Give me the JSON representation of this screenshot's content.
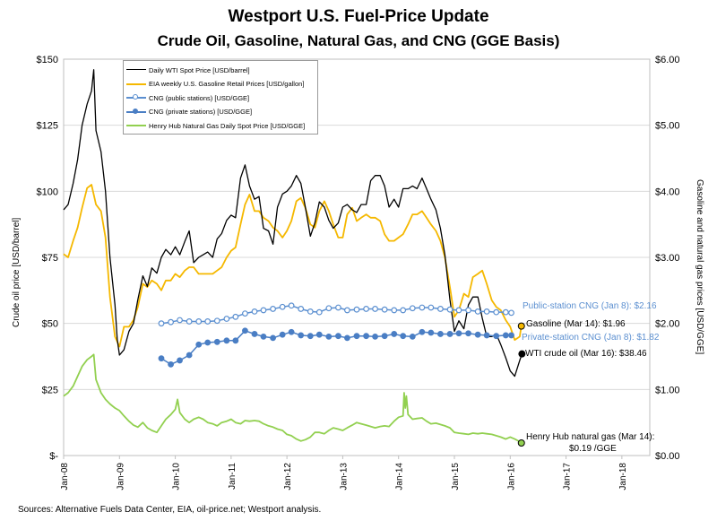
{
  "chart_data": {
    "type": "line",
    "title": "Westport U.S. Fuel-Price Update",
    "subtitle": "Crude Oil, Gasoline, Natural Gas, and CNG (GGE Basis)",
    "ylabel": "Crude oil price [USD/barrel]",
    "y2label": "Gasoline and natural gas prices [USD/GGE]",
    "ylim": [
      0,
      150
    ],
    "y2lim": [
      0,
      6
    ],
    "xlim": [
      2008.0,
      2018.5
    ],
    "y_ticks": [
      0,
      25,
      50,
      75,
      100,
      125,
      150
    ],
    "y_tick_labels": [
      "$-",
      "$25",
      "$50",
      "$75",
      "$100",
      "$125",
      "$150"
    ],
    "y2_ticks": [
      0,
      1,
      2,
      3,
      4,
      5,
      6
    ],
    "y2_tick_labels": [
      "$0.00",
      "$1.00",
      "$2.00",
      "$3.00",
      "$4.00",
      "$5.00",
      "$6.00"
    ],
    "x_ticks": [
      2008,
      2009,
      2010,
      2011,
      2012,
      2013,
      2014,
      2015,
      2016,
      2017,
      2018
    ],
    "x_tick_labels": [
      "Jan-08",
      "Jan-09",
      "Jan-10",
      "Jan-11",
      "Jan-12",
      "Jan-13",
      "Jan-14",
      "Jan-15",
      "Jan-16",
      "Jan-17",
      "Jan-18"
    ],
    "legend_position": "top-left",
    "series": [
      {
        "name": "Daily WTI Spot Price [USD/barrel]",
        "axis": "left",
        "color": "#000000",
        "style": "line",
        "x": [
          2008.0,
          2008.08,
          2008.17,
          2008.25,
          2008.33,
          2008.42,
          2008.5,
          2008.54,
          2008.58,
          2008.67,
          2008.75,
          2008.83,
          2008.92,
          2008.96,
          2009.0,
          2009.08,
          2009.17,
          2009.25,
          2009.33,
          2009.42,
          2009.5,
          2009.58,
          2009.67,
          2009.75,
          2009.83,
          2009.92,
          2010.0,
          2010.08,
          2010.17,
          2010.25,
          2010.33,
          2010.42,
          2010.5,
          2010.58,
          2010.67,
          2010.75,
          2010.83,
          2010.92,
          2011.0,
          2011.08,
          2011.17,
          2011.25,
          2011.33,
          2011.42,
          2011.5,
          2011.58,
          2011.67,
          2011.75,
          2011.83,
          2011.92,
          2012.0,
          2012.08,
          2012.17,
          2012.25,
          2012.33,
          2012.42,
          2012.5,
          2012.58,
          2012.67,
          2012.75,
          2012.83,
          2012.92,
          2013.0,
          2013.08,
          2013.17,
          2013.25,
          2013.33,
          2013.42,
          2013.5,
          2013.58,
          2013.67,
          2013.75,
          2013.83,
          2013.92,
          2014.0,
          2014.08,
          2014.17,
          2014.25,
          2014.33,
          2014.42,
          2014.5,
          2014.58,
          2014.67,
          2014.75,
          2014.83,
          2014.92,
          2015.0,
          2015.08,
          2015.17,
          2015.25,
          2015.33,
          2015.42,
          2015.5,
          2015.58,
          2015.67,
          2015.75,
          2015.83,
          2015.92,
          2016.0,
          2016.08,
          2016.17,
          2016.21
        ],
        "values": [
          93,
          95,
          103,
          112,
          125,
          133,
          138,
          146,
          123,
          115,
          100,
          75,
          57,
          44,
          38,
          40,
          47,
          50,
          59,
          68,
          64,
          71,
          69,
          75,
          78,
          76,
          79,
          76,
          81,
          85,
          73,
          75,
          76,
          77,
          75,
          82,
          84,
          89,
          91,
          90,
          105,
          110,
          102,
          97,
          98,
          86,
          85,
          80,
          94,
          99,
          100,
          102,
          106,
          103,
          94,
          83,
          88,
          96,
          94,
          89,
          86,
          88,
          94,
          95,
          93,
          92,
          95,
          95,
          104,
          106,
          106,
          102,
          94,
          97,
          94,
          101,
          101,
          102,
          101,
          105,
          101,
          97,
          93,
          86,
          76,
          59,
          47,
          51,
          48,
          57,
          60,
          60,
          52,
          45,
          45,
          46,
          42,
          37,
          32,
          30,
          36,
          38.46
        ]
      },
      {
        "name": "EIA weekly U.S. Gasoline Retail Prices [USD/gallon]",
        "axis": "right",
        "color": "#f5b800",
        "style": "line",
        "x": [
          2008.0,
          2008.08,
          2008.17,
          2008.25,
          2008.33,
          2008.42,
          2008.5,
          2008.58,
          2008.67,
          2008.75,
          2008.83,
          2008.92,
          2009.0,
          2009.08,
          2009.17,
          2009.25,
          2009.33,
          2009.42,
          2009.5,
          2009.58,
          2009.67,
          2009.75,
          2009.83,
          2009.92,
          2010.0,
          2010.08,
          2010.17,
          2010.25,
          2010.33,
          2010.42,
          2010.5,
          2010.58,
          2010.67,
          2010.75,
          2010.83,
          2010.92,
          2011.0,
          2011.08,
          2011.17,
          2011.25,
          2011.33,
          2011.42,
          2011.5,
          2011.58,
          2011.67,
          2011.75,
          2011.83,
          2011.92,
          2012.0,
          2012.08,
          2012.17,
          2012.25,
          2012.33,
          2012.42,
          2012.5,
          2012.58,
          2012.67,
          2012.75,
          2012.83,
          2012.92,
          2013.0,
          2013.08,
          2013.17,
          2013.25,
          2013.33,
          2013.42,
          2013.5,
          2013.58,
          2013.67,
          2013.75,
          2013.83,
          2013.92,
          2014.0,
          2014.08,
          2014.17,
          2014.25,
          2014.33,
          2014.42,
          2014.5,
          2014.58,
          2014.67,
          2014.75,
          2014.83,
          2014.92,
          2015.0,
          2015.08,
          2015.17,
          2015.25,
          2015.33,
          2015.42,
          2015.5,
          2015.58,
          2015.67,
          2015.75,
          2015.83,
          2015.92,
          2016.0,
          2016.08,
          2016.17,
          2016.2
        ],
        "values": [
          3.05,
          3.0,
          3.25,
          3.45,
          3.75,
          4.05,
          4.1,
          3.8,
          3.7,
          3.3,
          2.4,
          1.8,
          1.65,
          1.95,
          1.95,
          2.05,
          2.25,
          2.6,
          2.55,
          2.65,
          2.6,
          2.5,
          2.65,
          2.65,
          2.75,
          2.7,
          2.8,
          2.85,
          2.85,
          2.75,
          2.75,
          2.75,
          2.75,
          2.8,
          2.85,
          3.0,
          3.1,
          3.15,
          3.5,
          3.8,
          3.95,
          3.7,
          3.7,
          3.6,
          3.55,
          3.45,
          3.4,
          3.3,
          3.4,
          3.55,
          3.85,
          3.9,
          3.75,
          3.5,
          3.45,
          3.7,
          3.85,
          3.7,
          3.5,
          3.3,
          3.3,
          3.65,
          3.75,
          3.55,
          3.6,
          3.65,
          3.6,
          3.6,
          3.55,
          3.35,
          3.25,
          3.25,
          3.3,
          3.35,
          3.5,
          3.65,
          3.65,
          3.7,
          3.6,
          3.5,
          3.4,
          3.25,
          3.0,
          2.55,
          2.1,
          2.2,
          2.45,
          2.4,
          2.7,
          2.75,
          2.8,
          2.6,
          2.35,
          2.25,
          2.2,
          2.05,
          1.95,
          1.75,
          1.8,
          1.96
        ]
      },
      {
        "name": "CNG (public stations) [USD/GGE]",
        "axis": "right",
        "color": "#5b8fd0",
        "style": "open-markers",
        "x": [
          2009.75,
          2009.92,
          2010.08,
          2010.25,
          2010.42,
          2010.58,
          2010.75,
          2010.92,
          2011.08,
          2011.25,
          2011.42,
          2011.58,
          2011.75,
          2011.92,
          2012.08,
          2012.25,
          2012.42,
          2012.58,
          2012.75,
          2012.92,
          2013.08,
          2013.25,
          2013.42,
          2013.58,
          2013.75,
          2013.92,
          2014.08,
          2014.25,
          2014.42,
          2014.58,
          2014.75,
          2014.92,
          2015.08,
          2015.25,
          2015.42,
          2015.58,
          2015.75,
          2015.92,
          2016.02
        ],
        "values": [
          2.0,
          2.02,
          2.05,
          2.03,
          2.03,
          2.03,
          2.04,
          2.07,
          2.1,
          2.15,
          2.18,
          2.2,
          2.22,
          2.25,
          2.27,
          2.22,
          2.18,
          2.17,
          2.23,
          2.24,
          2.2,
          2.21,
          2.22,
          2.22,
          2.21,
          2.2,
          2.2,
          2.23,
          2.24,
          2.24,
          2.22,
          2.21,
          2.2,
          2.2,
          2.18,
          2.18,
          2.17,
          2.17,
          2.16
        ]
      },
      {
        "name": "CNG (private stations) [USD/GGE]",
        "axis": "right",
        "color": "#4a7ec4",
        "style": "filled-markers",
        "x": [
          2009.75,
          2009.92,
          2010.08,
          2010.25,
          2010.42,
          2010.58,
          2010.75,
          2010.92,
          2011.08,
          2011.25,
          2011.42,
          2011.58,
          2011.75,
          2011.92,
          2012.08,
          2012.25,
          2012.42,
          2012.58,
          2012.75,
          2012.92,
          2013.08,
          2013.25,
          2013.42,
          2013.58,
          2013.75,
          2013.92,
          2014.08,
          2014.25,
          2014.42,
          2014.58,
          2014.75,
          2014.92,
          2015.08,
          2015.25,
          2015.42,
          2015.58,
          2015.75,
          2015.92,
          2016.02
        ],
        "values": [
          1.47,
          1.38,
          1.44,
          1.52,
          1.68,
          1.71,
          1.72,
          1.74,
          1.74,
          1.89,
          1.84,
          1.8,
          1.78,
          1.83,
          1.87,
          1.82,
          1.81,
          1.83,
          1.8,
          1.81,
          1.78,
          1.81,
          1.81,
          1.8,
          1.81,
          1.84,
          1.81,
          1.8,
          1.87,
          1.86,
          1.84,
          1.84,
          1.85,
          1.85,
          1.83,
          1.82,
          1.81,
          1.82,
          1.82
        ]
      },
      {
        "name": "Henry Hub Natural Gas Daily Spot Price [USD/GGE]",
        "axis": "right",
        "color": "#92d050",
        "style": "line",
        "x": [
          2008.0,
          2008.08,
          2008.17,
          2008.25,
          2008.33,
          2008.42,
          2008.5,
          2008.54,
          2008.58,
          2008.67,
          2008.75,
          2008.83,
          2008.92,
          2009.0,
          2009.08,
          2009.17,
          2009.25,
          2009.33,
          2009.42,
          2009.5,
          2009.58,
          2009.67,
          2009.75,
          2009.83,
          2009.92,
          2010.0,
          2010.04,
          2010.08,
          2010.17,
          2010.25,
          2010.33,
          2010.42,
          2010.5,
          2010.58,
          2010.67,
          2010.75,
          2010.83,
          2010.92,
          2011.0,
          2011.08,
          2011.17,
          2011.25,
          2011.33,
          2011.42,
          2011.5,
          2011.58,
          2011.67,
          2011.75,
          2011.83,
          2011.92,
          2012.0,
          2012.08,
          2012.17,
          2012.25,
          2012.33,
          2012.42,
          2012.5,
          2012.58,
          2012.67,
          2012.75,
          2012.83,
          2012.92,
          2013.0,
          2013.08,
          2013.17,
          2013.25,
          2013.33,
          2013.42,
          2013.5,
          2013.58,
          2013.67,
          2013.75,
          2013.83,
          2013.92,
          2014.0,
          2014.08,
          2014.1,
          2014.12,
          2014.14,
          2014.17,
          2014.25,
          2014.33,
          2014.42,
          2014.5,
          2014.58,
          2014.67,
          2014.75,
          2014.83,
          2014.92,
          2015.0,
          2015.08,
          2015.17,
          2015.25,
          2015.33,
          2015.42,
          2015.5,
          2015.58,
          2015.67,
          2015.75,
          2015.83,
          2015.92,
          2016.0,
          2016.08,
          2016.17,
          2016.2
        ],
        "values": [
          0.9,
          0.95,
          1.05,
          1.2,
          1.35,
          1.45,
          1.5,
          1.53,
          1.15,
          0.95,
          0.85,
          0.78,
          0.72,
          0.68,
          0.6,
          0.52,
          0.46,
          0.43,
          0.5,
          0.42,
          0.38,
          0.35,
          0.45,
          0.55,
          0.62,
          0.7,
          0.85,
          0.65,
          0.55,
          0.5,
          0.55,
          0.58,
          0.55,
          0.5,
          0.48,
          0.45,
          0.5,
          0.52,
          0.55,
          0.5,
          0.48,
          0.53,
          0.52,
          0.53,
          0.52,
          0.48,
          0.45,
          0.43,
          0.4,
          0.38,
          0.32,
          0.3,
          0.25,
          0.22,
          0.24,
          0.28,
          0.35,
          0.35,
          0.33,
          0.38,
          0.42,
          0.4,
          0.38,
          0.42,
          0.46,
          0.5,
          0.48,
          0.46,
          0.44,
          0.42,
          0.44,
          0.45,
          0.44,
          0.52,
          0.58,
          0.6,
          0.95,
          0.72,
          0.9,
          0.62,
          0.55,
          0.56,
          0.57,
          0.52,
          0.48,
          0.49,
          0.47,
          0.45,
          0.42,
          0.35,
          0.34,
          0.33,
          0.32,
          0.34,
          0.33,
          0.34,
          0.33,
          0.32,
          0.3,
          0.28,
          0.25,
          0.28,
          0.25,
          0.21,
          0.19
        ]
      }
    ],
    "annotations": [
      {
        "text": "Public-station CNG (Jan 8):  $2.16",
        "color": "#5b8fd0"
      },
      {
        "text": "Gasoline (Mar 14): $1.96",
        "color": "#000000"
      },
      {
        "text": "Private-station CNG (Jan 8):  $1.82",
        "color": "#5b8fd0"
      },
      {
        "text": "WTI crude oil (Mar 16): $38.46",
        "color": "#000000"
      },
      {
        "text": "Henry Hub natural gas (Mar 14):",
        "color": "#000000"
      },
      {
        "text": "$0.19 /GGE",
        "color": "#000000"
      }
    ],
    "source": "Sources:  Alternative Fuels Data Center, EIA, oil-price.net; Westport analysis."
  }
}
